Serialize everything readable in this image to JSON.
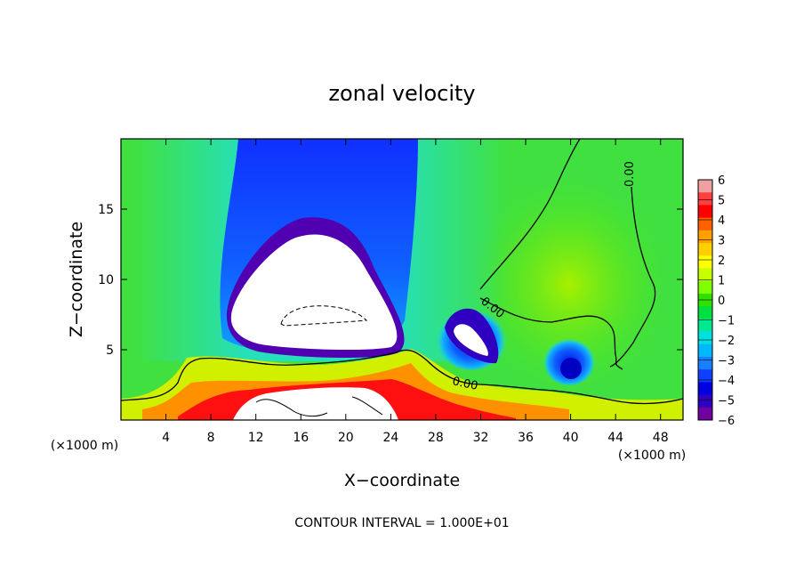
{
  "chart_data": {
    "type": "heatmap",
    "title": "zonal velocity",
    "xlabel": "X−coordinate",
    "ylabel": "Z−coordinate",
    "x_units_left": "(×1000 m)",
    "x_units_right": "(×1000 m)",
    "footer": "CONTOUR INTERVAL = 1.000E+01",
    "xlim": [
      0,
      50
    ],
    "ylim": [
      0,
      20
    ],
    "x_ticks": [
      4,
      8,
      12,
      16,
      20,
      24,
      28,
      32,
      36,
      40,
      44,
      48
    ],
    "y_ticks": [
      5,
      10,
      15
    ],
    "colorbar": {
      "min": -6,
      "max": 6,
      "ticks": [
        "6",
        "5",
        "4",
        "3",
        "2",
        "1",
        "0",
        "−1",
        "−2",
        "−3",
        "−4",
        "−5",
        "−6"
      ],
      "colors": [
        "#f0a0a0",
        "#ff4040",
        "#ff0000",
        "#ff6000",
        "#ffa000",
        "#ffd000",
        "#ffff00",
        "#c8ff00",
        "#80ff00",
        "#30e000",
        "#00e040",
        "#00e890",
        "#00e0e0",
        "#00b8ff",
        "#1880ff",
        "#1040ff",
        "#0000e0",
        "#3000c0",
        "#7000a0"
      ]
    },
    "contour_labels": [
      "0.00",
      "0.00",
      "0.00"
    ],
    "background_color": "#40e040"
  }
}
